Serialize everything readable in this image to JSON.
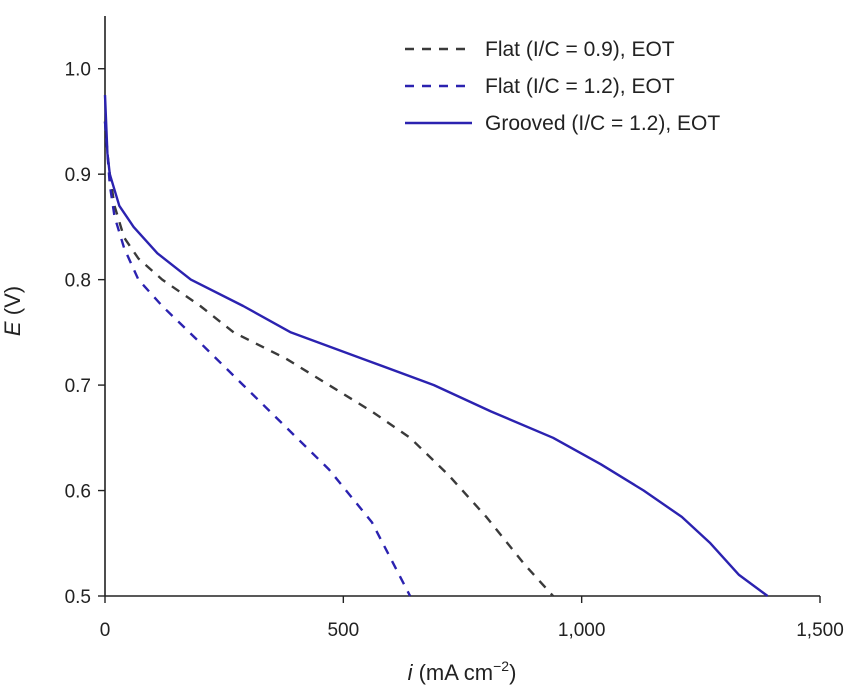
{
  "chart_data": {
    "type": "line",
    "title": "",
    "xlabel": {
      "prefix": "i",
      "text": " (mA cm",
      "sup": "−2",
      "suffix": ")"
    },
    "ylabel": {
      "prefix": "E",
      "text": " (V)"
    },
    "xlim": [
      0,
      1500
    ],
    "ylim": [
      0.5,
      1.05
    ],
    "xticks": [
      0,
      500,
      1000,
      1500
    ],
    "xtick_labels": [
      "0",
      "500",
      "1,000",
      "1,500"
    ],
    "yticks": [
      0.5,
      0.6,
      0.7,
      0.8,
      0.9,
      1.0
    ],
    "ytick_labels": [
      "0.5",
      "0.6",
      "0.7",
      "0.8",
      "0.9",
      "1.0"
    ],
    "grid": false,
    "legend_position": "top-right",
    "series": [
      {
        "name": "Flat (I/C = 0.9), EOT",
        "color": "#3a3a3a",
        "style": "dashed",
        "x": [
          0,
          5,
          10,
          20,
          40,
          70,
          120,
          200,
          270,
          380,
          470,
          560,
          640,
          720,
          800,
          880,
          940
        ],
        "y": [
          0.95,
          0.92,
          0.9,
          0.87,
          0.84,
          0.82,
          0.8,
          0.775,
          0.75,
          0.725,
          0.7,
          0.675,
          0.65,
          0.615,
          0.575,
          0.53,
          0.5
        ]
      },
      {
        "name": "Flat (I/C = 1.2), EOT",
        "color": "#2b22b0",
        "style": "dashed",
        "x": [
          0,
          5,
          10,
          20,
          40,
          70,
          120,
          200,
          290,
          380,
          470,
          560,
          640
        ],
        "y": [
          0.95,
          0.92,
          0.89,
          0.86,
          0.83,
          0.8,
          0.775,
          0.74,
          0.7,
          0.66,
          0.62,
          0.57,
          0.5
        ]
      },
      {
        "name": "Grooved (I/C = 1.2), EOT",
        "color": "#2b22b0",
        "style": "solid",
        "x": [
          0,
          5,
          10,
          30,
          60,
          110,
          180,
          290,
          390,
          540,
          690,
          810,
          940,
          1040,
          1130,
          1210,
          1270,
          1330,
          1390
        ],
        "y": [
          0.975,
          0.92,
          0.9,
          0.87,
          0.85,
          0.825,
          0.8,
          0.775,
          0.75,
          0.725,
          0.7,
          0.675,
          0.65,
          0.625,
          0.6,
          0.575,
          0.55,
          0.52,
          0.5
        ]
      }
    ]
  }
}
